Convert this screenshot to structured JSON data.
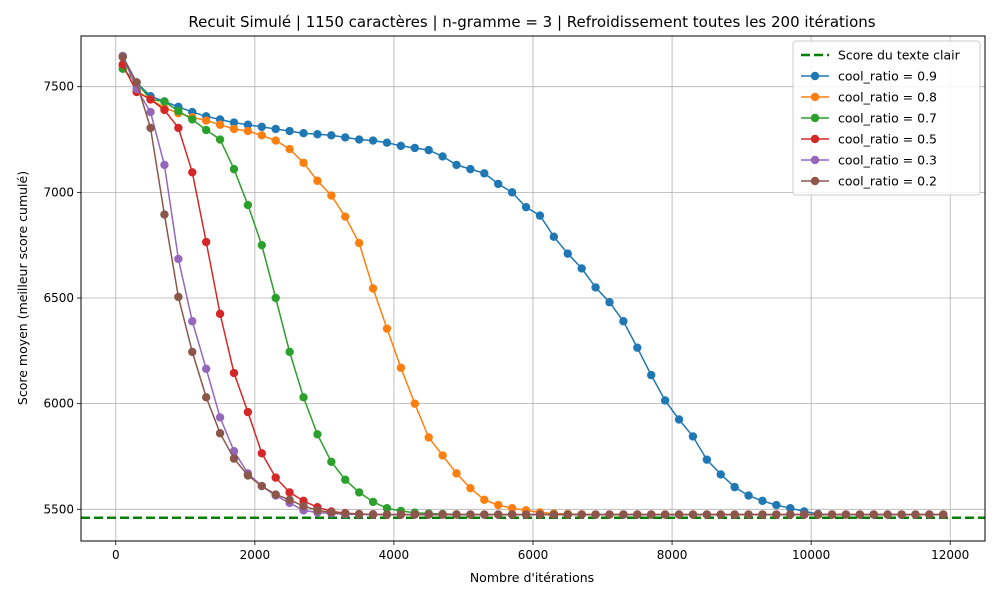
{
  "chart_data": {
    "type": "line",
    "title": "Recuit Simulé | 1150 caractères | n-gramme = 3 | Refroidissement toutes les 200 itérations",
    "xlabel": "Nombre d'itérations",
    "ylabel": "Score moyen (meilleur score cumulé)",
    "xlim": [
      -500,
      12500
    ],
    "ylim": [
      5350,
      7740
    ],
    "xticks": [
      0,
      2000,
      4000,
      6000,
      8000,
      10000,
      12000
    ],
    "yticks": [
      5500,
      6000,
      6500,
      7000,
      7500
    ],
    "xtick_labels": [
      "0",
      "2000",
      "4000",
      "6000",
      "8000",
      "10000",
      "12000"
    ],
    "ytick_labels": [
      "5500",
      "6000",
      "6500",
      "7000",
      "7500"
    ],
    "grid": true,
    "legend_position": "top-right",
    "reference_line": {
      "name": "Score du texte clair",
      "value": 5460,
      "color": "#008000",
      "style": "dashed"
    },
    "x": [
      100,
      300,
      500,
      700,
      900,
      1100,
      1300,
      1500,
      1700,
      1900,
      2100,
      2300,
      2500,
      2700,
      2900,
      3100,
      3300,
      3500,
      3700,
      3900,
      4100,
      4300,
      4500,
      4700,
      4900,
      5100,
      5300,
      5500,
      5700,
      5900,
      6100,
      6300,
      6500,
      6700,
      6900,
      7100,
      7300,
      7500,
      7700,
      7900,
      8100,
      8300,
      8500,
      8700,
      8900,
      9100,
      9300,
      9500,
      9700,
      9900,
      10100,
      10300,
      10500,
      10700,
      10900,
      11100,
      11300,
      11500,
      11700,
      11900
    ],
    "series": [
      {
        "name": "cool_ratio = 0.9",
        "color": "#1f77b4",
        "values": [
          7645,
          7520,
          7455,
          7430,
          7405,
          7380,
          7360,
          7345,
          7330,
          7320,
          7310,
          7300,
          7290,
          7280,
          7275,
          7270,
          7260,
          7250,
          7245,
          7235,
          7220,
          7210,
          7200,
          7170,
          7130,
          7110,
          7090,
          7040,
          7000,
          6930,
          6890,
          6790,
          6710,
          6640,
          6550,
          6480,
          6390,
          6265,
          6135,
          6015,
          5925,
          5845,
          5735,
          5665,
          5605,
          5565,
          5540,
          5520,
          5505,
          5490,
          5478,
          5475,
          5475,
          5475,
          5475,
          5475,
          5475,
          5475,
          5475,
          5475
        ]
      },
      {
        "name": "cool_ratio = 0.8",
        "color": "#ff7f0e",
        "values": [
          7600,
          7480,
          7440,
          7400,
          7375,
          7355,
          7340,
          7320,
          7300,
          7290,
          7270,
          7245,
          7205,
          7140,
          7055,
          6985,
          6885,
          6760,
          6545,
          6355,
          6170,
          6000,
          5840,
          5755,
          5670,
          5600,
          5545,
          5520,
          5505,
          5495,
          5485,
          5480,
          5478,
          5476,
          5475,
          5475,
          5475,
          5475,
          5475,
          5475,
          5475,
          5475,
          5475,
          5475,
          5475,
          5475,
          5475,
          5475,
          5475,
          5475,
          5475,
          5475,
          5475,
          5475,
          5475,
          5475,
          5475,
          5475,
          5475,
          5475
        ]
      },
      {
        "name": "cool_ratio = 0.7",
        "color": "#2ca02c",
        "values": [
          7585,
          7520,
          7440,
          7430,
          7385,
          7345,
          7295,
          7250,
          7110,
          6940,
          6750,
          6500,
          6245,
          6030,
          5855,
          5725,
          5640,
          5580,
          5535,
          5505,
          5492,
          5484,
          5480,
          5478,
          5476,
          5475,
          5475,
          5475,
          5475,
          5475,
          5475,
          5475,
          5475,
          5475,
          5475,
          5475,
          5475,
          5475,
          5475,
          5475,
          5475,
          5475,
          5475,
          5475,
          5475,
          5475,
          5475,
          5475,
          5475,
          5475,
          5475,
          5475,
          5475,
          5475,
          5475,
          5475,
          5475,
          5475,
          5475,
          5475
        ]
      },
      {
        "name": "cool_ratio = 0.5",
        "color": "#d62728",
        "values": [
          7605,
          7475,
          7440,
          7390,
          7305,
          7095,
          6765,
          6425,
          6145,
          5960,
          5765,
          5650,
          5580,
          5540,
          5510,
          5490,
          5482,
          5478,
          5476,
          5475,
          5475,
          5475,
          5475,
          5475,
          5475,
          5475,
          5475,
          5475,
          5475,
          5475,
          5475,
          5475,
          5475,
          5475,
          5475,
          5475,
          5475,
          5475,
          5475,
          5475,
          5475,
          5475,
          5475,
          5475,
          5475,
          5475,
          5475,
          5475,
          5475,
          5475,
          5475,
          5475,
          5475,
          5475,
          5475,
          5475,
          5475,
          5475,
          5475,
          5475
        ]
      },
      {
        "name": "cool_ratio = 0.3",
        "color": "#9467bd",
        "values": [
          7645,
          7490,
          7380,
          7130,
          6685,
          6390,
          6165,
          5935,
          5775,
          5670,
          5610,
          5565,
          5530,
          5495,
          5485,
          5480,
          5477,
          5476,
          5475,
          5475,
          5475,
          5475,
          5475,
          5475,
          5475,
          5475,
          5475,
          5475,
          5475,
          5475,
          5475,
          5475,
          5475,
          5475,
          5475,
          5475,
          5475,
          5475,
          5475,
          5475,
          5475,
          5475,
          5475,
          5475,
          5475,
          5475,
          5475,
          5475,
          5475,
          5475,
          5475,
          5475,
          5475,
          5475,
          5475,
          5475,
          5475,
          5475,
          5475,
          5475
        ]
      },
      {
        "name": "cool_ratio = 0.2",
        "color": "#8c564b",
        "values": [
          7640,
          7520,
          7305,
          6895,
          6505,
          6245,
          6030,
          5860,
          5740,
          5660,
          5610,
          5570,
          5545,
          5515,
          5495,
          5485,
          5480,
          5477,
          5476,
          5475,
          5475,
          5475,
          5475,
          5475,
          5475,
          5475,
          5475,
          5475,
          5475,
          5475,
          5475,
          5475,
          5475,
          5475,
          5475,
          5475,
          5475,
          5475,
          5475,
          5475,
          5475,
          5475,
          5475,
          5475,
          5475,
          5475,
          5475,
          5475,
          5475,
          5475,
          5475,
          5475,
          5475,
          5475,
          5475,
          5475,
          5475,
          5475,
          5475,
          5475
        ]
      }
    ]
  }
}
